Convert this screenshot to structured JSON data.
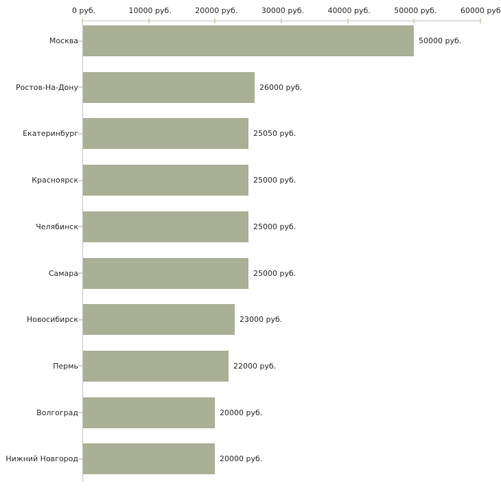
{
  "chart_data": {
    "type": "bar",
    "orientation": "horizontal",
    "title": "",
    "xlabel": "",
    "ylabel": "",
    "grid": false,
    "legend": null,
    "xlim": [
      0,
      60000
    ],
    "x_ticks": [
      0,
      10000,
      20000,
      30000,
      40000,
      50000,
      60000
    ],
    "x_tick_labels": [
      "0 руб.",
      "10000 руб.",
      "20000 руб.",
      "30000 руб.",
      "40000 руб.",
      "50000 руб.",
      "60000 руб."
    ],
    "categories": [
      "Москва",
      "Ростов-На-Дону",
      "Екатеринбург",
      "Красноярск",
      "Челябинск",
      "Самара",
      "Новосибирск",
      "Пермь",
      "Волгоград",
      "Нижний Новгород"
    ],
    "values": [
      50000,
      26000,
      25050,
      25000,
      25000,
      25000,
      23000,
      22000,
      20000,
      20000
    ],
    "value_labels": [
      "50000 руб.",
      "26000 руб.",
      "25050 руб.",
      "25000 руб.",
      "25000 руб.",
      "25000 руб.",
      "23000 руб.",
      "22000 руб.",
      "20000 руб.",
      "20000 руб."
    ],
    "colors": {
      "bar": "#aab096",
      "axis_line": "#c6c6c6",
      "tick_mark": "#d3d6bb",
      "text": "#2b2b2b",
      "background": "#ffffff"
    }
  }
}
